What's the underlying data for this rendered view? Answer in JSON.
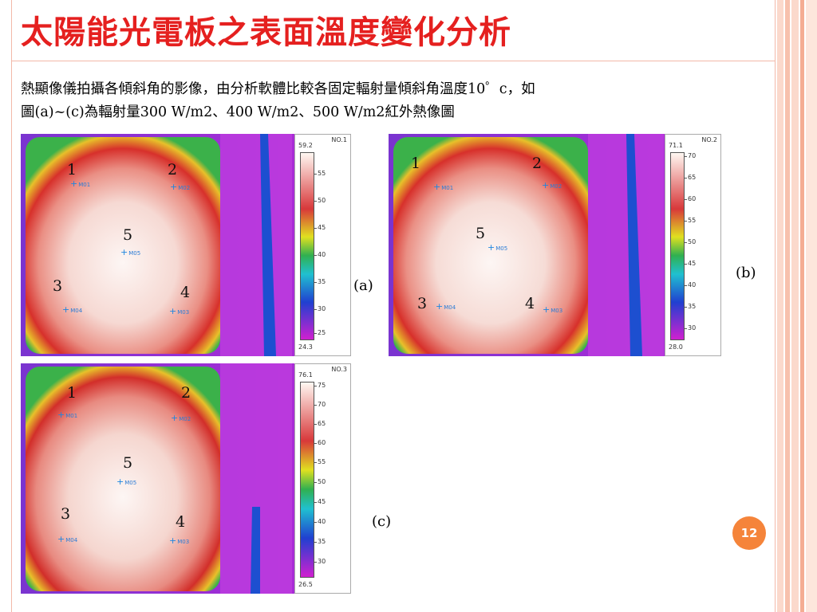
{
  "slide": {
    "title": "太陽能光電板之表面溫度變化分析",
    "body_line1": "熱顯像儀拍攝各傾斜角的影像，由分析軟體比較各固定輻射量傾斜角溫度10゜c，如",
    "body_line2": "圖(a)~(c)為輻射量300 W/m2、400 W/m2、500 W/m2紅外熱像圖",
    "page_number": "12"
  },
  "images": [
    {
      "id": "a",
      "caption": "(a)",
      "no_label": "NO.1",
      "max": "59.2",
      "min": "24.3",
      "ticks": [
        "55",
        "50",
        "45",
        "40",
        "35",
        "30",
        "25"
      ],
      "points": [
        "1",
        "2",
        "5",
        "3",
        "4"
      ],
      "markers": [
        "M01",
        "M02",
        "M05",
        "M04",
        "M03"
      ]
    },
    {
      "id": "b",
      "caption": "(b)",
      "no_label": "NO.2",
      "max": "71.1",
      "min": "28.0",
      "ticks": [
        "70",
        "65",
        "60",
        "55",
        "50",
        "45",
        "40",
        "35",
        "30"
      ],
      "points": [
        "1",
        "2",
        "5",
        "3",
        "4"
      ],
      "markers": [
        "M01",
        "M02",
        "M05",
        "M04",
        "M03"
      ]
    },
    {
      "id": "c",
      "caption": "(c)",
      "no_label": "NO.3",
      "max": "76.1",
      "min": "26.5",
      "ticks": [
        "75",
        "70",
        "65",
        "60",
        "55",
        "50",
        "45",
        "40",
        "35",
        "30"
      ],
      "points": [
        "1",
        "2",
        "5",
        "3",
        "4"
      ],
      "markers": [
        "M01",
        "M02",
        "M05",
        "M04",
        "M03"
      ]
    }
  ],
  "colors": {
    "title": "#e5201f",
    "badge": "#f5843a",
    "marker": "#2a7cd6"
  }
}
